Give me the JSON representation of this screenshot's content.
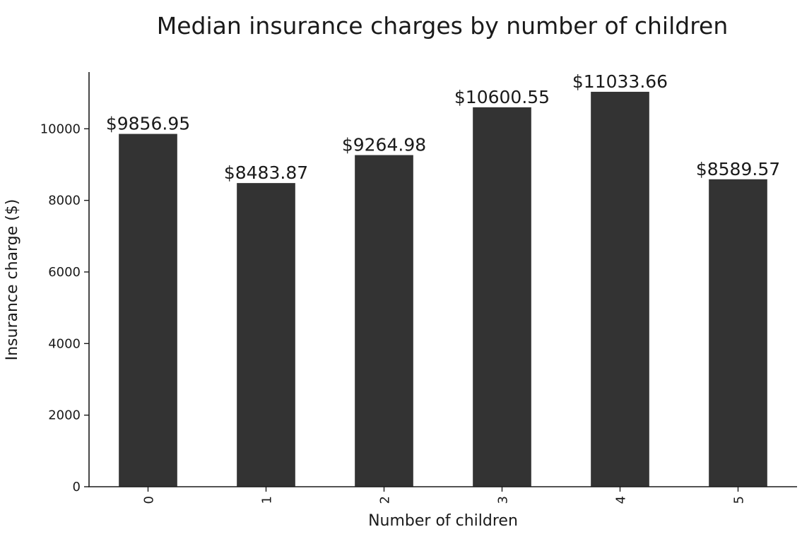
{
  "chart_data": {
    "type": "bar",
    "title": "Median insurance charges by number of children",
    "xlabel": "Number of children",
    "ylabel": "Insurance charge ($)",
    "categories": [
      "0",
      "1",
      "2",
      "3",
      "4",
      "5"
    ],
    "values": [
      9856.95,
      8483.87,
      9264.98,
      10600.55,
      11033.66,
      8589.57
    ],
    "data_labels": [
      "$9856.95",
      "$8483.87",
      "$9264.98",
      "$10600.55",
      "$11033.66",
      "$8589.57"
    ],
    "yticks": [
      0,
      2000,
      4000,
      6000,
      8000,
      10000
    ],
    "ylim": [
      0,
      11585
    ],
    "bar_color": "#333333",
    "grid": false,
    "x_tick_rotation": "vertical"
  }
}
